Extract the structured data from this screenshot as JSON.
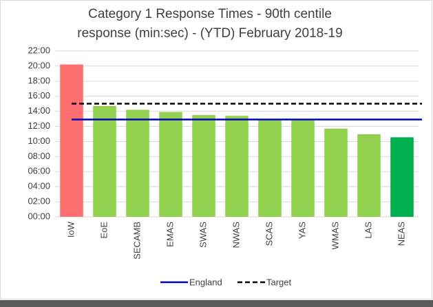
{
  "chart_data": {
    "type": "bar",
    "title": [
      "Category 1 Response Times - 90th centile",
      "response (min:sec) - (YTD) February 2018-19"
    ],
    "categories": [
      "IoW",
      "EoE",
      "SECAMB",
      "EMAS",
      "SWAS",
      "NWAS",
      "SCAS",
      "YAS",
      "WMAS",
      "LAS",
      "NEAS"
    ],
    "values": [
      20.2,
      14.7,
      14.2,
      13.9,
      13.5,
      13.4,
      12.8,
      12.8,
      11.7,
      10.95,
      10.55
    ],
    "colors": [
      "#ff6f6f",
      "#92d050",
      "#92d050",
      "#92d050",
      "#92d050",
      "#92d050",
      "#92d050",
      "#92d050",
      "#92d050",
      "#92d050",
      "#00b050"
    ],
    "lines": [
      {
        "name": "England",
        "color": "#0000c0",
        "value": 12.9,
        "dashed": false
      },
      {
        "name": "Target",
        "color": "#000000",
        "value": 15,
        "dashed": true
      }
    ],
    "ylim": [
      0,
      22
    ],
    "yticks": [
      {
        "value": 0,
        "label": "00:00"
      },
      {
        "value": 2,
        "label": "02:00"
      },
      {
        "value": 4,
        "label": "04:00"
      },
      {
        "value": 6,
        "label": "06:00"
      },
      {
        "value": 8,
        "label": "08:00"
      },
      {
        "value": 10,
        "label": "10:00"
      },
      {
        "value": 12,
        "label": "12:00"
      },
      {
        "value": 14,
        "label": "14:00"
      },
      {
        "value": 16,
        "label": "16:00"
      },
      {
        "value": 18,
        "label": "18:00"
      },
      {
        "value": 20,
        "label": "20:00"
      },
      {
        "value": 22,
        "label": "22:00"
      }
    ],
    "grid": true
  }
}
